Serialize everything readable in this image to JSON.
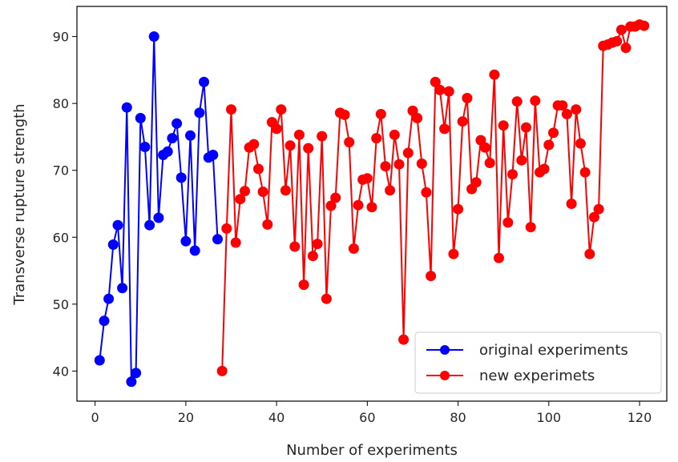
{
  "chart_data": {
    "type": "line",
    "title": "",
    "xlabel": "Number of experiments",
    "ylabel": "Transverse rupture strength",
    "xlim": [
      -4,
      126
    ],
    "ylim": [
      35.5,
      94.5
    ],
    "xticks": [
      0,
      20,
      40,
      60,
      80,
      100,
      120
    ],
    "yticks": [
      40,
      50,
      60,
      70,
      80,
      90
    ],
    "grid": false,
    "legend_position": "lower right",
    "series": [
      {
        "name": "original experiments",
        "color": "#0000ff",
        "x": [
          1,
          2,
          3,
          4,
          5,
          6,
          7,
          8,
          9,
          10,
          11,
          12,
          13,
          14,
          15,
          16,
          17,
          18,
          19,
          20,
          21,
          22,
          23,
          24,
          25,
          26,
          27
        ],
        "y": [
          41.6,
          47.5,
          50.8,
          58.9,
          61.8,
          52.4,
          79.4,
          38.4,
          39.7,
          77.8,
          73.5,
          61.8,
          90.0,
          62.9,
          72.3,
          72.8,
          74.8,
          77.0,
          68.9,
          59.4,
          75.2,
          58.0,
          78.6,
          83.2,
          71.9,
          72.3,
          59.7
        ]
      },
      {
        "name": "new experimets",
        "color": "#ff0000",
        "x": [
          28,
          29,
          30,
          31,
          32,
          33,
          34,
          35,
          36,
          37,
          38,
          39,
          40,
          41,
          42,
          43,
          44,
          45,
          46,
          47,
          48,
          49,
          50,
          51,
          52,
          53,
          54,
          55,
          56,
          57,
          58,
          59,
          60,
          61,
          62,
          63,
          64,
          65,
          66,
          67,
          68,
          69,
          70,
          71,
          72,
          73,
          74,
          75,
          76,
          77,
          78,
          79,
          80,
          81,
          82,
          83,
          84,
          85,
          86,
          87,
          88,
          89,
          90,
          91,
          92,
          93,
          94,
          95,
          96,
          97,
          98,
          99,
          100,
          101,
          102,
          103,
          104,
          105,
          106,
          107,
          108,
          109,
          110,
          111,
          112,
          113,
          114,
          115,
          116,
          117,
          118,
          119,
          120,
          121
        ],
        "y": [
          40.0,
          61.3,
          79.1,
          59.2,
          65.7,
          66.9,
          73.4,
          73.9,
          70.2,
          66.8,
          61.9,
          77.2,
          76.2,
          79.1,
          67.0,
          73.7,
          58.6,
          75.3,
          52.9,
          73.3,
          57.2,
          59.0,
          75.1,
          50.8,
          64.7,
          65.9,
          78.6,
          78.3,
          74.2,
          58.3,
          64.8,
          68.6,
          68.8,
          64.5,
          74.8,
          78.4,
          70.6,
          67.0,
          75.3,
          70.9,
          44.7,
          72.6,
          78.9,
          77.8,
          71.0,
          66.7,
          54.2,
          83.2,
          82.0,
          76.2,
          81.8,
          57.5,
          64.2,
          77.3,
          80.8,
          67.2,
          68.2,
          74.5,
          73.4,
          71.1,
          84.3,
          56.9,
          76.7,
          62.2,
          69.4,
          80.3,
          71.5,
          76.4,
          61.5,
          80.4,
          69.7,
          70.2,
          73.8,
          75.6,
          79.7,
          79.7,
          78.4,
          65.0,
          79.1,
          74.0,
          69.7,
          57.5,
          63.0,
          64.2,
          88.6,
          88.8,
          89.1,
          89.3,
          91.0,
          88.3,
          91.5,
          91.5,
          91.8,
          91.6
        ]
      }
    ]
  }
}
